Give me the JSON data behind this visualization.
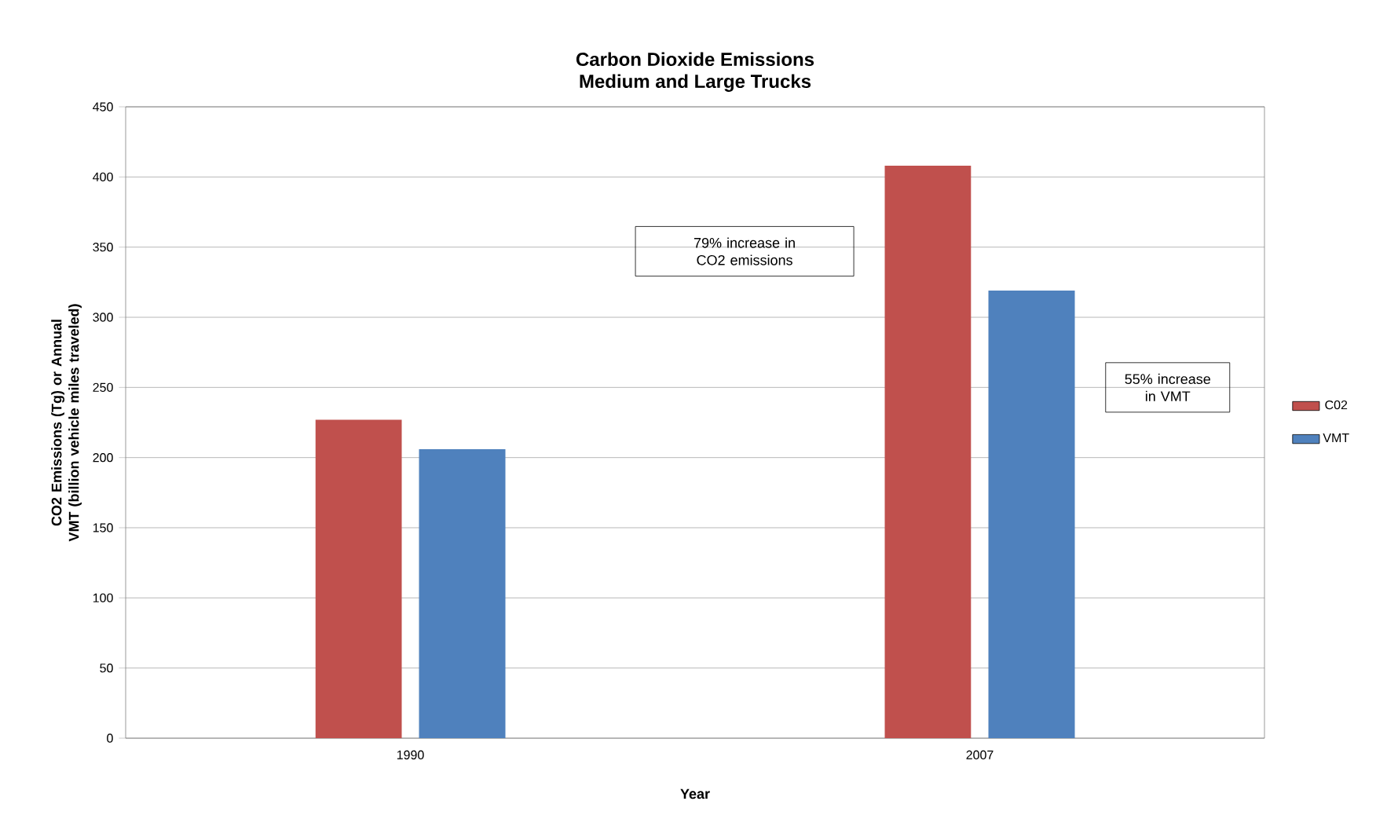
{
  "chart_data": {
    "type": "bar",
    "title": "Carbon Dioxide Emissions",
    "subtitle": "Medium and Large Trucks",
    "xlabel": "Year",
    "ylabel": "CO2 Emissions (Tg) or Annual VMT (billion vehicle miles traveled)",
    "categories": [
      "1990",
      "2007"
    ],
    "series": [
      {
        "name": "C02",
        "color": "#c0504d",
        "values": [
          227,
          408
        ]
      },
      {
        "name": "VMT",
        "color": "#4f81bd",
        "values": [
          206,
          319
        ]
      }
    ],
    "ylim": [
      0,
      450
    ],
    "yticks": [
      0,
      50,
      100,
      150,
      200,
      250,
      300,
      350,
      400,
      450
    ],
    "grid": "y",
    "legend": "right",
    "annotations": [
      "79% increase in CO2 emissions",
      "55% increase in VMT"
    ]
  }
}
